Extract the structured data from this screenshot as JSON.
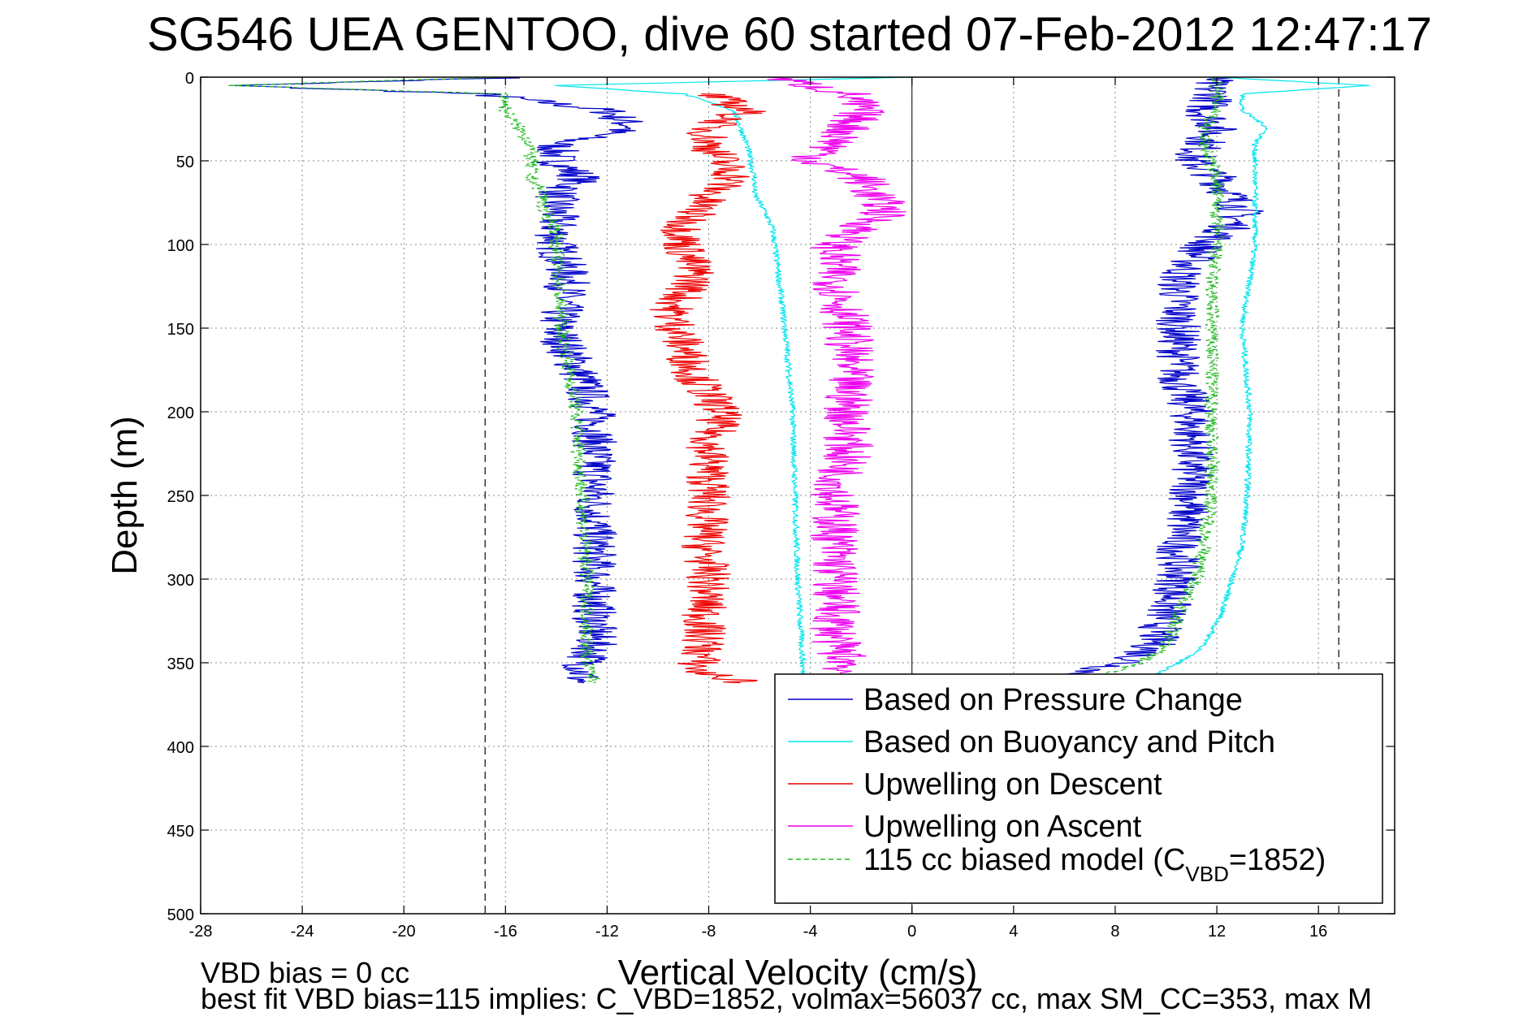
{
  "chart_data": {
    "type": "line",
    "title": "SG546 UEA GENTOO, dive 60 started 07-Feb-2012 12:47:17",
    "xlabel": "Vertical Velocity (cm/s)",
    "ylabel": "Depth (m)",
    "xlim": [
      -28,
      19
    ],
    "ylim": [
      500,
      0
    ],
    "y_reversed": true,
    "x_ticks": [
      -28,
      -24,
      -20,
      -16,
      -12,
      -8,
      -4,
      0,
      4,
      8,
      12,
      16
    ],
    "x_tick_labels": [
      "-28",
      "-24",
      "-20",
      "-16",
      "-12",
      "-8",
      "-4",
      "0",
      "4",
      "8",
      "12",
      "16"
    ],
    "y_ticks": [
      0,
      50,
      100,
      150,
      200,
      250,
      300,
      350,
      400,
      450,
      500
    ],
    "y_tick_labels": [
      "0",
      "50",
      "100",
      "150",
      "200",
      "250",
      "300",
      "350",
      "400",
      "450",
      "500"
    ],
    "grid": true,
    "legend_position": "bottom-right",
    "reference_lines": {
      "dashed_x": [
        -16.8,
        16.8
      ],
      "solid_x": [
        0
      ]
    },
    "series": [
      {
        "name": "Based on Pressure Change",
        "color": "#0000c8",
        "style": "solid",
        "descent": {
          "depth": [
            0,
            5,
            10,
            20,
            30,
            40,
            50,
            60,
            70,
            80,
            90,
            100,
            120,
            150,
            180,
            200,
            220,
            250,
            280,
            300,
            320,
            340,
            355,
            362
          ],
          "velocity": [
            -15,
            -27,
            -17,
            -12,
            -11,
            -14,
            -14,
            -13,
            -14,
            -14,
            -14,
            -14,
            -13.5,
            -14,
            -13,
            -12.5,
            -12.5,
            -12.5,
            -12.5,
            -12.5,
            -12.5,
            -12.5,
            -13,
            -13
          ]
        },
        "ascent": {
          "depth": [
            362,
            355,
            350,
            340,
            320,
            300,
            280,
            250,
            220,
            200,
            180,
            150,
            120,
            100,
            90,
            80,
            70,
            60,
            50,
            40,
            30,
            20,
            10,
            5,
            0
          ],
          "velocity": [
            6,
            7,
            8.5,
            9.5,
            10,
            10.5,
            10.5,
            11,
            11,
            11,
            10.5,
            10.5,
            10.5,
            11.5,
            12.5,
            13,
            12.5,
            12,
            11,
            11.5,
            12,
            11.5,
            12,
            11.5,
            12
          ]
        }
      },
      {
        "name": "Based on Buoyancy and Pitch",
        "color": "#00e5ee",
        "style": "solid",
        "descent": {
          "depth": [
            0,
            5,
            10,
            20,
            40,
            60,
            70,
            80,
            90,
            100,
            150,
            200,
            250,
            300,
            350,
            362
          ],
          "velocity": [
            0,
            -14,
            -9,
            -7,
            -6.5,
            -6.2,
            -6.2,
            -5.8,
            -5.5,
            -5.4,
            -5.0,
            -4.7,
            -4.6,
            -4.5,
            -4.3,
            -4.3
          ]
        },
        "ascent": {
          "depth": [
            362,
            350,
            340,
            320,
            300,
            280,
            250,
            200,
            150,
            100,
            80,
            60,
            50,
            40,
            30,
            20,
            10,
            5,
            0
          ],
          "velocity": [
            9,
            10.5,
            11.5,
            12.2,
            12.6,
            13,
            13.2,
            13.3,
            13,
            13.5,
            13.5,
            13.5,
            13.5,
            13.5,
            14,
            13,
            13,
            18,
            12
          ]
        }
      },
      {
        "name": "Upwelling on Descent",
        "color": "#ee0000",
        "style": "solid",
        "descent": {
          "depth": [
            10,
            20,
            30,
            40,
            50,
            60,
            70,
            80,
            90,
            100,
            120,
            140,
            160,
            180,
            200,
            220,
            250,
            280,
            300,
            320,
            340,
            355,
            362
          ],
          "velocity": [
            -8,
            -6.5,
            -8,
            -8,
            -7.5,
            -7,
            -8,
            -8.5,
            -9,
            -9,
            -8.5,
            -9.5,
            -9,
            -8.5,
            -7.5,
            -8,
            -8,
            -8.2,
            -8,
            -8.2,
            -8.2,
            -8.5,
            -6.5
          ]
        }
      },
      {
        "name": "Upwelling on Ascent",
        "color": "#ee00ee",
        "style": "solid",
        "ascent": {
          "depth": [
            362,
            350,
            340,
            320,
            300,
            280,
            250,
            220,
            200,
            180,
            150,
            120,
            100,
            90,
            80,
            70,
            60,
            50,
            40,
            30,
            20,
            10,
            0
          ],
          "velocity": [
            -3,
            -2.5,
            -3,
            -3,
            -3,
            -3,
            -3,
            -2.5,
            -2.5,
            -2.5,
            -2.5,
            -3,
            -3,
            -2,
            -1,
            -1.5,
            -2,
            -4,
            -3,
            -2.5,
            -2,
            -2.5,
            -5.5
          ]
        }
      },
      {
        "name": "115 cc biased model (C_VBD=1852)",
        "color": "#22bb22",
        "style": "dashed",
        "descent": {
          "depth": [
            0,
            5,
            10,
            20,
            30,
            40,
            50,
            60,
            70,
            80,
            90,
            100,
            150,
            200,
            250,
            300,
            350,
            362
          ],
          "velocity": [
            -16,
            -27,
            -16,
            -16,
            -15.5,
            -15,
            -15,
            -15,
            -14.5,
            -14.5,
            -14,
            -14,
            -13.8,
            -13.2,
            -13,
            -12.8,
            -12.8,
            -12.5
          ]
        },
        "ascent": {
          "depth": [
            362,
            355,
            350,
            340,
            320,
            300,
            280,
            250,
            200,
            150,
            120,
            100,
            80,
            60,
            40,
            30,
            20,
            10,
            0
          ],
          "velocity": [
            6,
            8,
            9,
            10,
            10.5,
            11.2,
            11.5,
            11.8,
            11.8,
            11.8,
            11.8,
            12,
            12,
            12,
            11.5,
            11.5,
            12,
            12,
            12
          ]
        }
      }
    ],
    "legend": {
      "entries": [
        {
          "label": "Based on Pressure Change",
          "color": "#0000c8",
          "style": "solid"
        },
        {
          "label": "Based on Buoyancy and Pitch",
          "color": "#00e5ee",
          "style": "solid"
        },
        {
          "label": "Upwelling on Descent",
          "color": "#ee0000",
          "style": "solid"
        },
        {
          "label": "Upwelling on Ascent",
          "color": "#ee00ee",
          "style": "solid"
        },
        {
          "label_main": "115 cc biased model (C",
          "label_sub": "VBD",
          "label_tail": "=1852)",
          "color": "#22bb22",
          "style": "dashed"
        }
      ]
    },
    "footer": {
      "line1": "VBD bias = 0 cc",
      "line2": "best fit VBD bias=115 implies: C_VBD=1852, volmax=56037 cc, max SM_CC=353, max M"
    }
  }
}
